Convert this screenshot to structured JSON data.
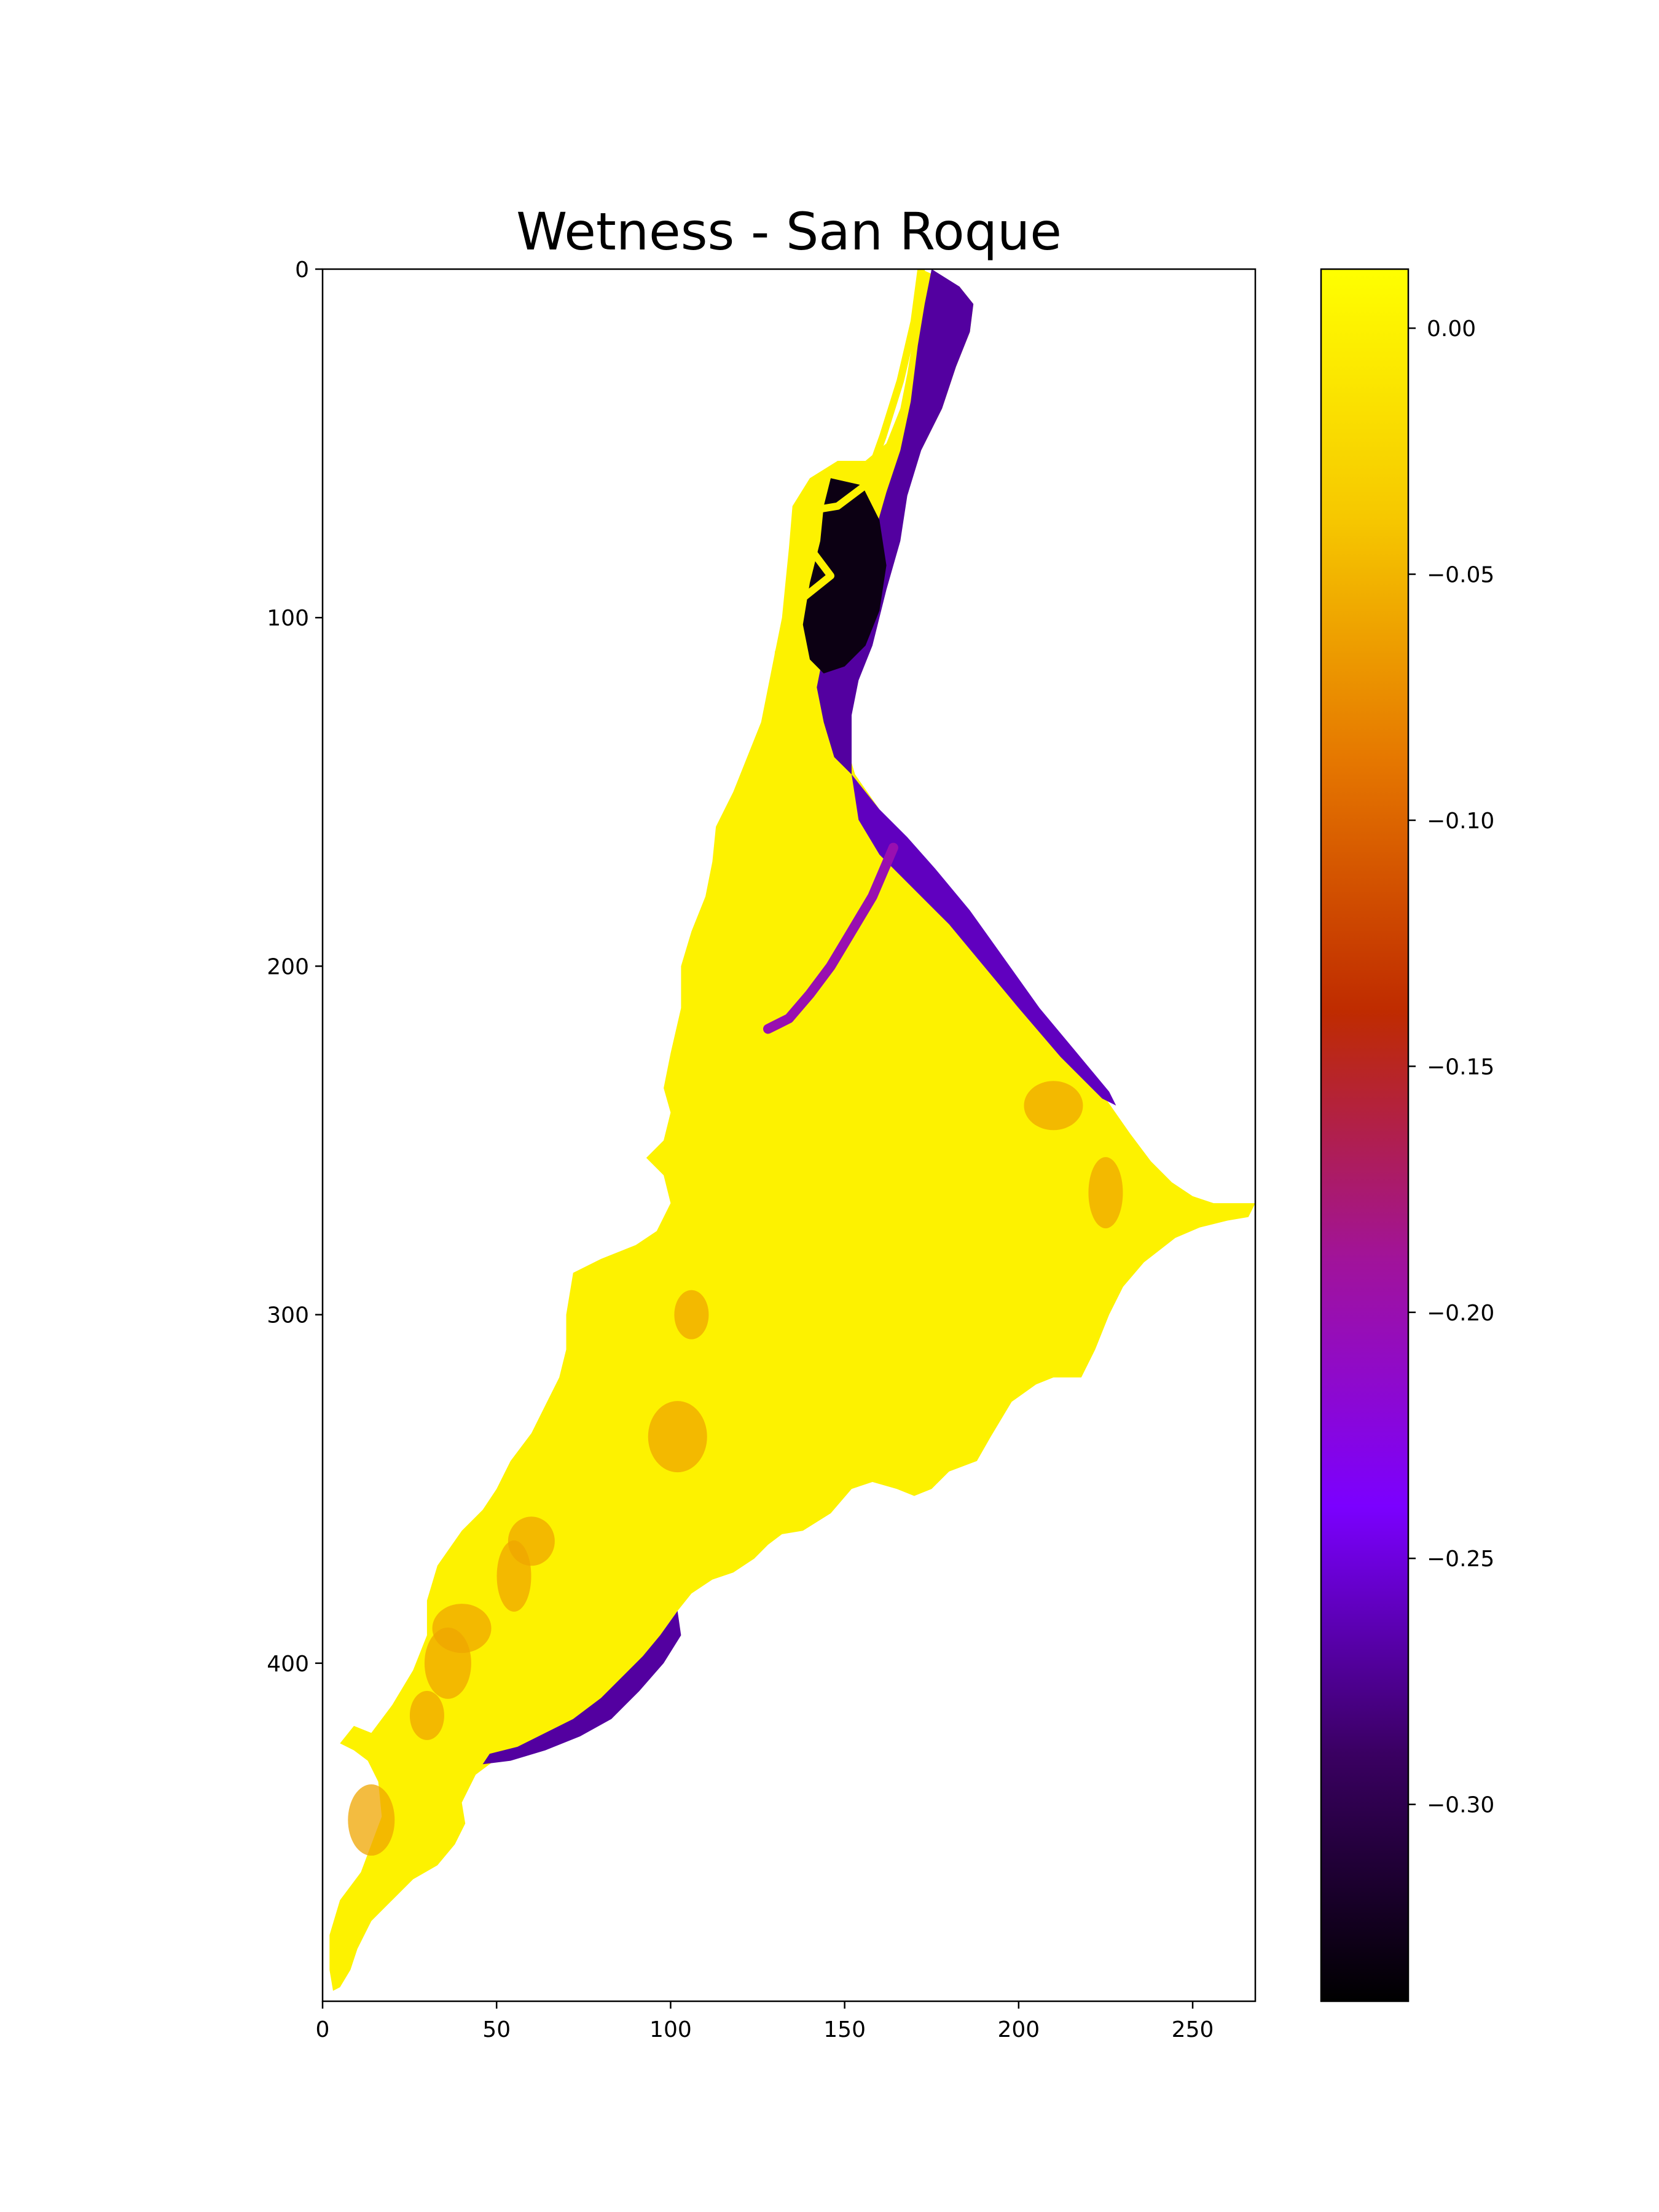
{
  "chart_data": {
    "type": "heatmap",
    "title": "Wetness - San Roque",
    "xlabel": "",
    "ylabel": "",
    "colormap": "gnuplot",
    "x_axis": {
      "range": [
        0,
        268
      ],
      "ticks": [
        0,
        50,
        100,
        150,
        200,
        250
      ],
      "tick_labels": [
        "0",
        "50",
        "100",
        "150",
        "200",
        "250"
      ]
    },
    "y_axis": {
      "range": [
        497,
        0
      ],
      "inverted": true,
      "ticks": [
        0,
        100,
        200,
        300,
        400
      ],
      "tick_labels": [
        "0",
        "100",
        "200",
        "300",
        "400"
      ]
    },
    "colorbar": {
      "range": [
        -0.34,
        0.012
      ],
      "ticks": [
        0.0,
        -0.05,
        -0.1,
        -0.15,
        -0.2,
        -0.25,
        -0.3
      ],
      "tick_labels": [
        "0.00",
        "−0.05",
        "−0.10",
        "−0.15",
        "−0.20",
        "−0.25",
        "−0.30"
      ],
      "colors": [
        "#000000",
        "#3a0062",
        "#7b00ff",
        "#a1139a",
        "#bf2b00",
        "#e57600",
        "#f6c800",
        "#ffff00"
      ]
    },
    "regions": {
      "reservoir_extent": {
        "value": 0.0,
        "outline": [
          [
            172,
            0
          ],
          [
            183,
            5
          ],
          [
            187,
            10
          ],
          [
            186,
            18
          ],
          [
            182,
            28
          ],
          [
            178,
            40
          ],
          [
            172,
            52
          ],
          [
            165,
            62
          ],
          [
            162,
            74
          ],
          [
            160,
            85
          ],
          [
            158,
            95
          ],
          [
            156,
            108
          ],
          [
            152,
            120
          ],
          [
            150,
            135
          ],
          [
            153,
            145
          ],
          [
            160,
            155
          ],
          [
            165,
            163
          ],
          [
            172,
            170
          ],
          [
            178,
            178
          ],
          [
            186,
            188
          ],
          [
            193,
            196
          ],
          [
            200,
            205
          ],
          [
            207,
            215
          ],
          [
            215,
            225
          ],
          [
            225,
            238
          ],
          [
            232,
            248
          ],
          [
            238,
            256
          ],
          [
            244,
            262
          ],
          [
            250,
            266
          ],
          [
            256,
            268
          ],
          [
            262,
            268
          ],
          [
            268,
            268
          ],
          [
            266,
            272
          ],
          [
            260,
            273
          ],
          [
            252,
            275
          ],
          [
            245,
            278
          ],
          [
            236,
            285
          ],
          [
            230,
            292
          ],
          [
            226,
            300
          ],
          [
            222,
            310
          ],
          [
            218,
            318
          ],
          [
            210,
            318
          ],
          [
            205,
            320
          ],
          [
            198,
            325
          ],
          [
            192,
            335
          ],
          [
            188,
            342
          ],
          [
            180,
            345
          ],
          [
            175,
            350
          ],
          [
            170,
            352
          ],
          [
            165,
            350
          ],
          [
            158,
            348
          ],
          [
            152,
            350
          ],
          [
            146,
            357
          ],
          [
            138,
            362
          ],
          [
            132,
            363
          ],
          [
            128,
            366
          ],
          [
            124,
            370
          ],
          [
            118,
            374
          ],
          [
            112,
            376
          ],
          [
            106,
            380
          ],
          [
            102,
            385
          ],
          [
            97,
            392
          ],
          [
            93,
            398
          ],
          [
            88,
            404
          ],
          [
            82,
            410
          ],
          [
            75,
            415
          ],
          [
            68,
            420
          ],
          [
            60,
            424
          ],
          [
            52,
            426
          ],
          [
            44,
            432
          ],
          [
            40,
            440
          ],
          [
            41,
            446
          ],
          [
            38,
            452
          ],
          [
            33,
            458
          ],
          [
            26,
            462
          ],
          [
            20,
            468
          ],
          [
            14,
            474
          ],
          [
            10,
            482
          ],
          [
            8,
            488
          ],
          [
            5,
            493
          ],
          [
            3,
            494
          ],
          [
            2,
            488
          ],
          [
            2,
            478
          ],
          [
            5,
            468
          ],
          [
            11,
            460
          ],
          [
            14,
            452
          ],
          [
            17,
            444
          ],
          [
            16,
            434
          ],
          [
            13,
            428
          ],
          [
            9,
            425
          ],
          [
            5,
            423
          ],
          [
            9,
            418
          ],
          [
            14,
            420
          ],
          [
            20,
            412
          ],
          [
            26,
            402
          ],
          [
            30,
            392
          ],
          [
            30,
            382
          ],
          [
            33,
            372
          ],
          [
            40,
            362
          ],
          [
            46,
            356
          ],
          [
            50,
            350
          ],
          [
            54,
            342
          ],
          [
            60,
            334
          ],
          [
            64,
            326
          ],
          [
            68,
            318
          ],
          [
            70,
            310
          ],
          [
            70,
            300
          ],
          [
            72,
            288
          ],
          [
            80,
            284
          ],
          [
            90,
            280
          ],
          [
            96,
            276
          ],
          [
            100,
            268
          ],
          [
            98,
            260
          ],
          [
            93,
            255
          ],
          [
            98,
            250
          ],
          [
            100,
            242
          ],
          [
            98,
            235
          ],
          [
            100,
            225
          ],
          [
            103,
            212
          ],
          [
            103,
            200
          ],
          [
            106,
            190
          ],
          [
            110,
            180
          ],
          [
            112,
            170
          ],
          [
            113,
            160
          ],
          [
            118,
            150
          ],
          [
            122,
            140
          ],
          [
            126,
            130
          ],
          [
            128,
            120
          ],
          [
            130,
            110
          ],
          [
            132,
            100
          ],
          [
            133,
            90
          ],
          [
            134,
            80
          ],
          [
            135,
            68
          ],
          [
            140,
            60
          ],
          [
            148,
            55
          ],
          [
            156,
            55
          ],
          [
            162,
            50
          ],
          [
            166,
            40
          ],
          [
            168,
            30
          ],
          [
            170,
            18
          ],
          [
            171,
            8
          ],
          [
            172,
            0
          ]
        ]
      },
      "upper_channel_zone": {
        "value": -0.27,
        "outline": [
          [
            175,
            0
          ],
          [
            183,
            5
          ],
          [
            187,
            10
          ],
          [
            186,
            18
          ],
          [
            182,
            28
          ],
          [
            178,
            40
          ],
          [
            172,
            52
          ],
          [
            168,
            65
          ],
          [
            166,
            78
          ],
          [
            162,
            92
          ],
          [
            158,
            108
          ],
          [
            154,
            118
          ],
          [
            152,
            128
          ],
          [
            152,
            140
          ],
          [
            152,
            145
          ],
          [
            147,
            140
          ],
          [
            144,
            130
          ],
          [
            142,
            120
          ],
          [
            144,
            110
          ],
          [
            148,
            100
          ],
          [
            152,
            90
          ],
          [
            158,
            78
          ],
          [
            162,
            64
          ],
          [
            166,
            52
          ],
          [
            169,
            38
          ],
          [
            171,
            22
          ],
          [
            173,
            10
          ]
        ]
      },
      "dark_basin": {
        "value": -0.33,
        "outline": [
          [
            146,
            60
          ],
          [
            155,
            62
          ],
          [
            160,
            72
          ],
          [
            162,
            85
          ],
          [
            160,
            98
          ],
          [
            156,
            108
          ],
          [
            150,
            114
          ],
          [
            144,
            116
          ],
          [
            140,
            112
          ],
          [
            138,
            102
          ],
          [
            140,
            90
          ],
          [
            143,
            78
          ],
          [
            144,
            68
          ]
        ]
      },
      "eastern_shore_strip": {
        "value": -0.26,
        "outline": [
          [
            152,
            145
          ],
          [
            160,
            155
          ],
          [
            168,
            163
          ],
          [
            176,
            172
          ],
          [
            186,
            184
          ],
          [
            196,
            198
          ],
          [
            206,
            212
          ],
          [
            216,
            224
          ],
          [
            226,
            236
          ],
          [
            228,
            240
          ],
          [
            224,
            238
          ],
          [
            212,
            226
          ],
          [
            200,
            212
          ],
          [
            190,
            200
          ],
          [
            180,
            188
          ],
          [
            170,
            178
          ],
          [
            160,
            168
          ],
          [
            154,
            158
          ]
        ]
      },
      "southern_shore_strip": {
        "value": -0.27,
        "outline": [
          [
            102,
            385
          ],
          [
            97,
            392
          ],
          [
            92,
            398
          ],
          [
            86,
            404
          ],
          [
            80,
            410
          ],
          [
            72,
            416
          ],
          [
            64,
            420
          ],
          [
            56,
            424
          ],
          [
            48,
            426
          ],
          [
            46,
            429
          ],
          [
            54,
            428
          ],
          [
            64,
            425
          ],
          [
            74,
            421
          ],
          [
            83,
            416
          ],
          [
            91,
            408
          ],
          [
            98,
            400
          ],
          [
            103,
            392
          ]
        ]
      },
      "central_channel": {
        "value": -0.2,
        "polyline": [
          [
            164,
            166
          ],
          [
            158,
            180
          ],
          [
            152,
            190
          ],
          [
            146,
            200
          ],
          [
            140,
            208
          ],
          [
            134,
            215
          ],
          [
            128,
            218
          ]
        ]
      },
      "river_channel": {
        "value": 0.0,
        "polyline": [
          [
            172,
            0
          ],
          [
            170,
            15
          ],
          [
            166,
            32
          ],
          [
            161,
            48
          ],
          [
            156,
            62
          ],
          [
            148,
            68
          ],
          [
            136,
            70
          ],
          [
            140,
            80
          ],
          [
            146,
            88
          ],
          [
            136,
            96
          ],
          [
            131,
            110
          ],
          [
            130,
            125
          ]
        ]
      },
      "moderate_patches": {
        "value": -0.06,
        "centers": [
          [
            30,
            415
          ],
          [
            36,
            400
          ],
          [
            40,
            390
          ],
          [
            55,
            375
          ],
          [
            60,
            365
          ],
          [
            102,
            335
          ],
          [
            106,
            300
          ],
          [
            14,
            445
          ],
          [
            210,
            240
          ],
          [
            225,
            265
          ]
        ]
      }
    }
  }
}
